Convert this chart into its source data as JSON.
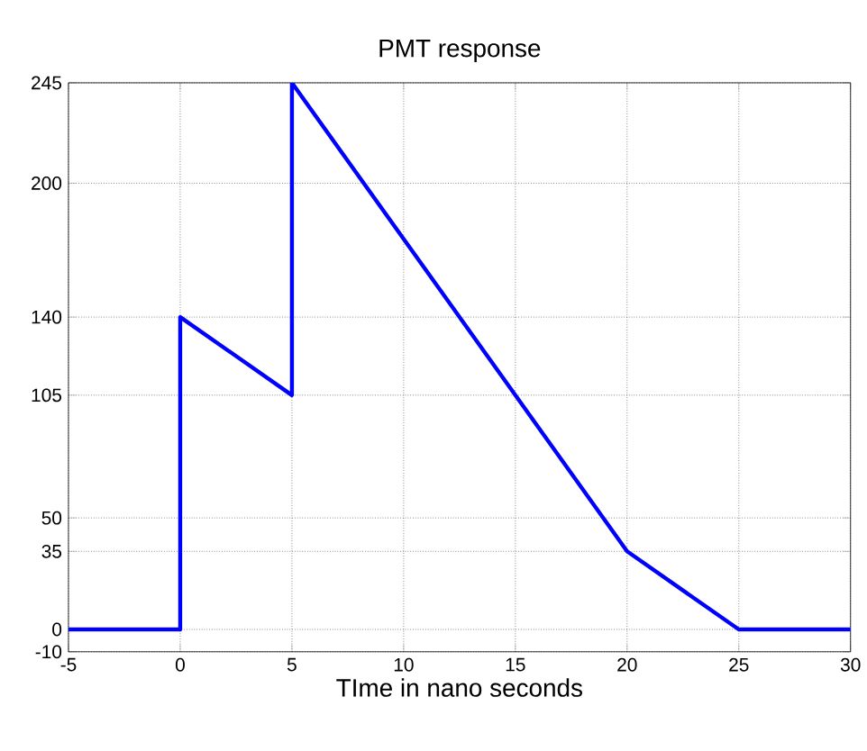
{
  "chart_data": {
    "type": "line",
    "title": "PMT response",
    "xlabel": "TIme in nano seconds",
    "x": [
      -5,
      0,
      0,
      5,
      5,
      20,
      25,
      30
    ],
    "series": [
      {
        "color": "#0000ff",
        "values": [
          0,
          0,
          140,
          105,
          245,
          35,
          0,
          0
        ]
      }
    ],
    "xlim": [
      -5,
      30
    ],
    "xticks": [
      -5,
      0,
      5,
      10,
      15,
      20,
      25,
      30
    ],
    "ylim": [
      -10,
      245
    ],
    "yticks": [
      -10,
      0,
      35,
      50,
      105,
      140,
      200,
      245
    ],
    "grid": true,
    "marker": "none",
    "line_style": "solid"
  }
}
